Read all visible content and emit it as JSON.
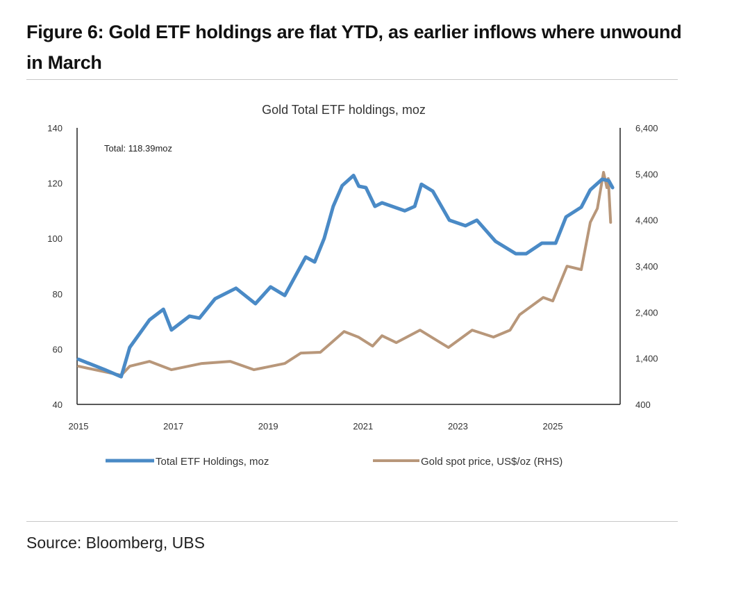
{
  "figure_title": "Figure 6: Gold ETF holdings are flat YTD, as earlier inflows where unwound in March",
  "source": "Source: Bloomberg, UBS",
  "chart_data": {
    "type": "line",
    "title": "Gold Total ETF holdings, moz",
    "annotation": "Total: 118.39moz",
    "xlim": [
      2015,
      2026.4
    ],
    "x_ticks": [
      2015,
      2017,
      2019,
      2021,
      2023,
      2025
    ],
    "x_tick_labels": [
      "2015",
      "2017",
      "2019",
      "2021",
      "2023",
      "2025"
    ],
    "y_left": {
      "lim": [
        40,
        140
      ],
      "ticks": [
        40,
        60,
        80,
        100,
        120,
        140
      ],
      "tick_labels": [
        "40",
        "60",
        "80",
        "100",
        "120",
        "140"
      ]
    },
    "y_right": {
      "lim": [
        400,
        6400
      ],
      "ticks": [
        400,
        1400,
        2400,
        3400,
        4400,
        5400,
        6400
      ],
      "tick_labels": [
        "400",
        "1,400",
        "2,400",
        "3,400",
        "4,400",
        "5,400",
        "6,400"
      ]
    },
    "grid": false,
    "legend_placement": "bottom",
    "series": [
      {
        "name": "Total ETF Holdings, moz",
        "axis": "left",
        "color": "#4a8ac6",
        "x": [
          2015.0,
          2015.55,
          2015.9,
          2016.08,
          2016.5,
          2016.79,
          2016.96,
          2017.34,
          2017.55,
          2017.88,
          2018.32,
          2018.73,
          2019.05,
          2019.35,
          2019.79,
          2019.98,
          2020.18,
          2020.37,
          2020.56,
          2020.8,
          2020.91,
          2021.06,
          2021.25,
          2021.4,
          2021.88,
          2022.09,
          2022.23,
          2022.47,
          2022.82,
          2023.16,
          2023.4,
          2023.79,
          2024.22,
          2024.44,
          2024.77,
          2025.06,
          2025.28,
          2025.6,
          2025.79,
          2026.04,
          2026.18,
          2026.26
        ],
        "y": [
          56.3,
          52.6,
          50.0,
          60.6,
          70.6,
          74.4,
          66.9,
          71.9,
          71.2,
          78.2,
          82.0,
          76.4,
          82.5,
          79.4,
          93.3,
          91.5,
          100.0,
          111.6,
          119.1,
          122.8,
          118.9,
          118.4,
          111.6,
          112.9,
          110.0,
          111.6,
          119.6,
          117.1,
          106.6,
          104.6,
          106.6,
          99.0,
          94.5,
          94.5,
          98.3,
          98.3,
          107.8,
          111.3,
          117.6,
          121.4,
          120.9,
          118.4
        ]
      },
      {
        "name": "Gold spot price, US$/oz (RHS)",
        "axis": "right",
        "color": "#b8977a",
        "x": [
          2015.0,
          2015.55,
          2015.9,
          2016.08,
          2016.5,
          2016.96,
          2017.6,
          2018.2,
          2018.7,
          2019.35,
          2019.69,
          2020.1,
          2020.3,
          2020.6,
          2020.9,
          2021.2,
          2021.4,
          2021.7,
          2022.2,
          2022.8,
          2023.3,
          2023.75,
          2024.1,
          2024.3,
          2024.8,
          2025.0,
          2025.3,
          2025.6,
          2025.79,
          2025.94,
          2026.07,
          2026.14,
          2026.17,
          2026.22
        ],
        "y": [
          1228,
          1107,
          1032,
          1228,
          1333,
          1152,
          1288,
          1333,
          1152,
          1288,
          1514,
          1530,
          1710,
          1982,
          1861,
          1665,
          1890,
          1740,
          2012,
          1635,
          2012,
          1861,
          2012,
          2344,
          2720,
          2645,
          3399,
          3324,
          4349,
          4651,
          5435,
          5103,
          5299,
          4349
        ]
      }
    ]
  }
}
